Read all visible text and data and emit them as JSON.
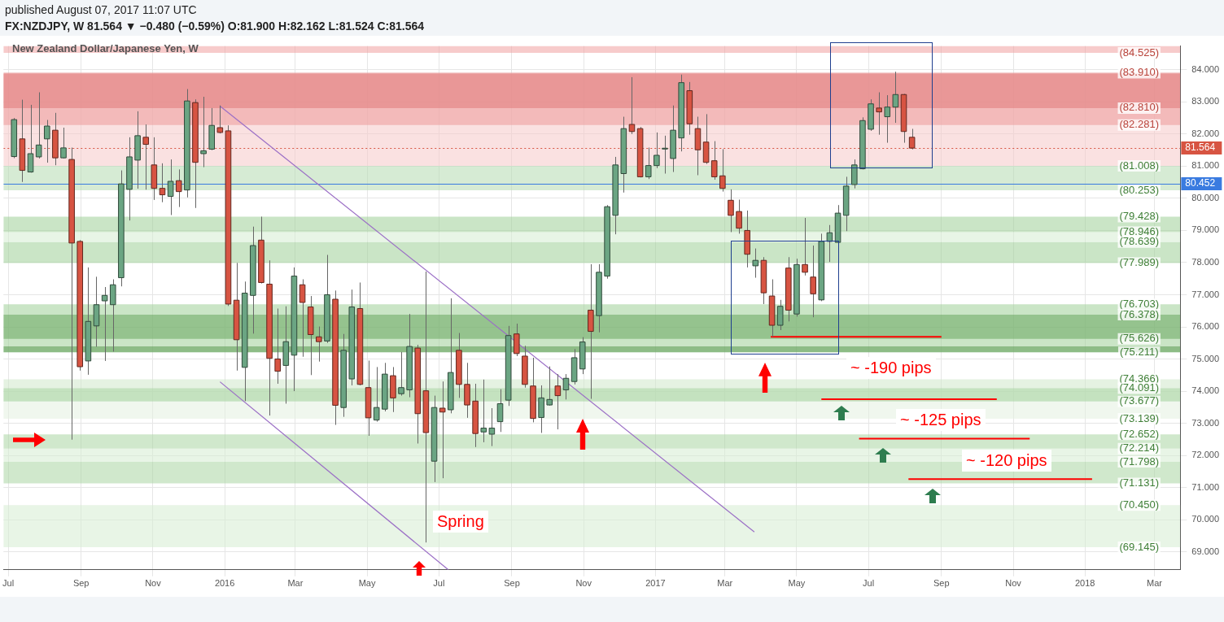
{
  "chart_data": {
    "type": "candlestick",
    "title": "New Zealand Dollar/Japanese Yen, W",
    "subtitle": "FX:NZDJPY, W  81.564 ▼ −0.480 (−0.59%) O:81.900 H:82.162 L:81.524 C:81.564",
    "annotations": [
      "published August 07, 2017 11:07 UTC",
      "~ -190 pips",
      "~ -125 pips",
      "~ -120 pips",
      "Spring",
      {
        "text": "(84.525)",
        "x": "2018-02-16",
        "y": 84.525
      },
      {
        "text": "(83.910)",
        "x": "2018-02-16",
        "y": 83.91
      },
      {
        "text": "(82.810)",
        "x": "2018-02-16",
        "y": 82.81
      },
      {
        "text": "(82.281)",
        "x": "2018-02-16",
        "y": 82.281
      },
      {
        "text": "(81.008)",
        "x": "2018-02-16",
        "y": 81.008
      },
      {
        "text": "(80.253)",
        "x": "2018-02-16",
        "y": 80.253
      },
      {
        "text": "(79.428)",
        "x": "2018-02-16",
        "y": 79.428
      },
      {
        "text": "(78.946)",
        "x": "2018-02-16",
        "y": 78.946
      },
      {
        "text": "(78.639)",
        "x": "2018-02-16",
        "y": 78.639
      },
      {
        "text": "(77.989)",
        "x": "2018-02-16",
        "y": 77.989
      },
      {
        "text": "(76.703)",
        "x": "2018-02-16",
        "y": 76.703
      },
      {
        "text": "(76.378)",
        "x": "2018-02-16",
        "y": 76.378
      },
      {
        "text": "(75.626)",
        "x": "2018-02-16",
        "y": 75.626
      },
      {
        "text": "(75.211)",
        "x": "2018-02-16",
        "y": 75.211
      },
      {
        "text": "(74.366)",
        "x": "2018-02-16",
        "y": 74.366
      },
      {
        "text": "(74.091)",
        "x": "2018-02-16",
        "y": 74.091
      },
      {
        "text": "(73.677)",
        "x": "2018-02-16",
        "y": 73.677
      },
      {
        "text": "(73.139)",
        "x": "2018-02-16",
        "y": 73.139
      },
      {
        "text": "(72.652)",
        "x": "2018-02-16",
        "y": 72.652
      },
      {
        "text": "(72.214)",
        "x": "2018-02-16",
        "y": 72.214
      },
      {
        "text": "(71.798)",
        "x": "2018-02-16",
        "y": 71.798
      },
      {
        "text": "(71.131)",
        "x": "2018-02-16",
        "y": 71.131
      },
      {
        "text": "(70.450)",
        "x": "2018-02-16",
        "y": 70.45
      },
      {
        "text": "(69.145)",
        "x": "2018-02-16",
        "y": 69.145
      }
    ],
    "x": [
      "2015-07-06",
      "2015-07-13",
      "2015-07-20",
      "2015-07-27",
      "2015-08-03",
      "2015-08-10",
      "2015-08-17",
      "2015-08-24",
      "2015-08-31",
      "2015-09-07",
      "2015-09-14",
      "2015-09-21",
      "2015-09-28",
      "2015-10-05",
      "2015-10-12",
      "2015-10-19",
      "2015-10-26",
      "2015-11-02",
      "2015-11-09",
      "2015-11-16",
      "2015-11-23",
      "2015-11-30",
      "2015-12-07",
      "2015-12-14",
      "2015-12-21",
      "2015-12-28",
      "2016-01-04",
      "2016-01-11",
      "2016-01-18",
      "2016-01-25",
      "2016-02-01",
      "2016-02-08",
      "2016-02-15",
      "2016-02-22",
      "2016-02-29",
      "2016-03-07",
      "2016-03-14",
      "2016-03-21",
      "2016-03-28",
      "2016-04-04",
      "2016-04-11",
      "2016-04-18",
      "2016-04-25",
      "2016-05-02",
      "2016-05-09",
      "2016-05-16",
      "2016-05-23",
      "2016-05-30",
      "2016-06-06",
      "2016-06-13",
      "2016-06-20",
      "2016-06-27",
      "2016-07-04",
      "2016-07-11",
      "2016-07-18",
      "2016-07-25",
      "2016-08-01",
      "2016-08-08",
      "2016-08-15",
      "2016-08-22",
      "2016-08-29",
      "2016-09-05",
      "2016-09-12",
      "2016-09-19",
      "2016-09-26",
      "2016-10-03",
      "2016-10-10",
      "2016-10-17",
      "2016-10-24",
      "2016-10-31",
      "2016-11-07",
      "2016-11-14",
      "2016-11-21",
      "2016-11-28",
      "2016-12-05",
      "2016-12-12",
      "2016-12-19",
      "2016-12-26",
      "2017-01-02",
      "2017-01-09",
      "2017-01-16",
      "2017-01-23",
      "2017-01-30",
      "2017-02-06",
      "2017-02-13",
      "2017-02-20",
      "2017-02-27",
      "2017-03-06",
      "2017-03-13",
      "2017-03-20",
      "2017-03-27",
      "2017-04-03",
      "2017-04-10",
      "2017-04-17",
      "2017-04-24",
      "2017-05-01",
      "2017-05-08",
      "2017-05-15",
      "2017-05-22",
      "2017-05-29",
      "2017-06-05",
      "2017-06-12",
      "2017-06-19",
      "2017-06-26",
      "2017-07-03",
      "2017-07-10",
      "2017-07-17",
      "2017-07-24",
      "2017-07-31",
      "2017-08-07"
    ],
    "ohlc": [
      [
        81.3,
        82.5,
        81.25,
        82.45
      ],
      [
        81.85,
        83.07,
        80.51,
        80.87
      ],
      [
        80.82,
        82.91,
        80.8,
        81.39
      ],
      [
        81.29,
        83.3,
        81.24,
        81.66
      ],
      [
        81.85,
        82.44,
        81.11,
        82.25
      ],
      [
        82.12,
        82.66,
        81.03,
        81.26
      ],
      [
        81.26,
        82.2,
        81.24,
        81.57
      ],
      [
        81.21,
        81.58,
        72.49,
        78.61
      ],
      [
        78.66,
        78.7,
        74.64,
        74.76
      ],
      [
        74.94,
        77.85,
        74.51,
        76.17
      ],
      [
        76.03,
        77.56,
        75.38,
        76.69
      ],
      [
        76.81,
        77.24,
        74.94,
        76.98
      ],
      [
        76.69,
        77.48,
        75.23,
        77.31
      ],
      [
        77.53,
        80.87,
        77.26,
        80.45
      ],
      [
        80.28,
        81.9,
        79.31,
        81.29
      ],
      [
        81.19,
        82.71,
        80.3,
        81.95
      ],
      [
        81.9,
        82.3,
        80.27,
        81.68
      ],
      [
        81.04,
        81.9,
        79.95,
        80.31
      ],
      [
        80.31,
        81.09,
        79.88,
        80.11
      ],
      [
        80.06,
        81.21,
        79.48,
        80.53
      ],
      [
        80.55,
        80.9,
        79.73,
        80.21
      ],
      [
        80.26,
        83.4,
        80.03,
        83.03
      ],
      [
        82.98,
        83.08,
        79.7,
        81.12
      ],
      [
        81.39,
        83.16,
        80.97,
        81.48
      ],
      [
        81.53,
        82.81,
        81.5,
        82.27
      ],
      [
        82.2,
        82.89,
        82.02,
        82.05
      ],
      [
        82.1,
        82.27,
        76.65,
        76.71
      ],
      [
        76.83,
        77.99,
        74.64,
        75.6
      ],
      [
        74.74,
        77.41,
        73.69,
        77.05
      ],
      [
        76.98,
        79.12,
        75.79,
        78.53
      ],
      [
        78.7,
        79.43,
        77.35,
        77.38
      ],
      [
        77.33,
        78.07,
        73.24,
        75.02
      ],
      [
        75.0,
        76.57,
        74.23,
        74.62
      ],
      [
        74.8,
        76.64,
        73.61,
        75.54
      ],
      [
        75.12,
        77.85,
        74.0,
        77.58
      ],
      [
        77.31,
        77.48,
        75.07,
        76.76
      ],
      [
        76.62,
        76.96,
        74.5,
        75.76
      ],
      [
        75.69,
        76.01,
        74.92,
        75.54
      ],
      [
        75.56,
        78.24,
        75.5,
        77.0
      ],
      [
        76.86,
        77.13,
        72.95,
        73.56
      ],
      [
        73.49,
        75.78,
        73.2,
        75.27
      ],
      [
        74.38,
        77.16,
        74.18,
        76.62
      ],
      [
        76.57,
        77.38,
        74.18,
        74.21
      ],
      [
        74.11,
        74.95,
        72.61,
        73.17
      ],
      [
        73.1,
        74.75,
        73.05,
        73.49
      ],
      [
        73.44,
        74.88,
        73.37,
        74.53
      ],
      [
        74.48,
        74.75,
        73.35,
        73.79
      ],
      [
        73.92,
        75.22,
        73.86,
        74.11
      ],
      [
        74.04,
        76.4,
        73.81,
        75.39
      ],
      [
        75.34,
        75.44,
        72.37,
        73.3
      ],
      [
        74.01,
        77.72,
        69.29,
        72.71
      ],
      [
        71.82,
        73.86,
        71.17,
        73.49
      ],
      [
        73.47,
        74.3,
        71.29,
        73.35
      ],
      [
        73.42,
        76.89,
        73.31,
        74.58
      ],
      [
        75.27,
        75.81,
        73.79,
        74.21
      ],
      [
        74.21,
        74.88,
        73.17,
        73.57
      ],
      [
        73.69,
        74.23,
        72.26,
        72.68
      ],
      [
        72.73,
        74.36,
        72.41,
        72.85
      ],
      [
        72.66,
        73.47,
        72.29,
        72.85
      ],
      [
        73.05,
        74.06,
        72.73,
        73.61
      ],
      [
        73.72,
        76.03,
        73.54,
        75.73
      ],
      [
        75.78,
        76.1,
        75.09,
        75.17
      ],
      [
        75.09,
        75.41,
        74.11,
        74.21
      ],
      [
        74.16,
        75.04,
        73.03,
        73.15
      ],
      [
        73.18,
        74.18,
        72.7,
        73.79
      ],
      [
        73.57,
        74.77,
        73.55,
        73.74
      ],
      [
        74.16,
        74.53,
        72.81,
        73.86
      ],
      [
        74.04,
        74.53,
        73.74,
        74.4
      ],
      [
        74.3,
        75.31,
        74.21,
        75.04
      ],
      [
        74.69,
        75.68,
        74.53,
        75.53
      ],
      [
        76.52,
        77.95,
        73.76,
        75.86
      ],
      [
        76.35,
        77.95,
        75.83,
        77.7
      ],
      [
        77.58,
        79.79,
        77.5,
        79.74
      ],
      [
        79.47,
        81.29,
        78.88,
        81.04
      ],
      [
        80.77,
        82.54,
        80.18,
        82.17
      ],
      [
        82.3,
        83.77,
        82.0,
        82.08
      ],
      [
        82.17,
        82.22,
        80.65,
        80.67
      ],
      [
        80.67,
        81.58,
        80.6,
        81.02
      ],
      [
        81.02,
        82.05,
        80.94,
        81.34
      ],
      [
        81.54,
        81.95,
        80.77,
        81.56
      ],
      [
        81.24,
        82.89,
        80.82,
        82.12
      ],
      [
        81.88,
        83.85,
        81.46,
        83.6
      ],
      [
        83.35,
        83.62,
        81.98,
        82.32
      ],
      [
        82.17,
        82.54,
        80.72,
        81.51
      ],
      [
        81.75,
        82.62,
        81.07,
        81.12
      ],
      [
        81.17,
        81.78,
        80.58,
        80.67
      ],
      [
        80.7,
        81.53,
        80.21,
        80.31
      ],
      [
        79.94,
        80.28,
        78.95,
        79.47
      ],
      [
        79.59,
        79.96,
        78.9,
        79.07
      ],
      [
        79.0,
        79.62,
        77.85,
        78.26
      ],
      [
        77.9,
        78.44,
        77.53,
        78.07
      ],
      [
        78.07,
        78.17,
        76.71,
        77.06
      ],
      [
        76.96,
        77.48,
        75.69,
        76.05
      ],
      [
        76.05,
        76.84,
        75.9,
        76.64
      ],
      [
        77.83,
        78.17,
        76.17,
        76.52
      ],
      [
        76.4,
        78.12,
        76.32,
        77.94
      ],
      [
        77.94,
        79.39,
        77.6,
        77.7
      ],
      [
        77.55,
        78.53,
        76.3,
        77.03
      ],
      [
        76.84,
        78.9,
        76.8,
        78.66
      ],
      [
        78.66,
        79.17,
        78.02,
        78.93
      ],
      [
        78.63,
        79.79,
        78.6,
        79.54
      ],
      [
        79.47,
        80.67,
        78.98,
        80.38
      ],
      [
        80.43,
        81.21,
        80.31,
        81.04
      ],
      [
        80.92,
        82.52,
        80.9,
        82.42
      ],
      [
        82.15,
        83.08,
        82.1,
        82.94
      ],
      [
        82.81,
        83.3,
        81.98,
        82.69
      ],
      [
        82.54,
        83.21,
        81.73,
        82.84
      ],
      [
        82.84,
        83.94,
        82.35,
        83.23
      ],
      [
        83.23,
        83.25,
        81.73,
        82.08
      ],
      [
        81.9,
        82.162,
        81.524,
        81.564
      ]
    ],
    "colors": [
      "#6ba583",
      "#d75442",
      "#6ba583",
      "#6ba583",
      "#6ba583",
      "#d75442",
      "#6ba583",
      "#d75442",
      "#d75442",
      "#6ba583",
      "#6ba583",
      "#6ba583",
      "#6ba583",
      "#6ba583",
      "#6ba583",
      "#6ba583",
      "#d75442",
      "#d75442",
      "#d75442",
      "#6ba583",
      "#d75442",
      "#6ba583",
      "#d75442",
      "#6ba583",
      "#6ba583",
      "#d75442",
      "#d75442",
      "#d75442",
      "#6ba583",
      "#6ba583",
      "#d75442",
      "#d75442",
      "#d75442",
      "#6ba583",
      "#6ba583",
      "#d75442",
      "#d75442",
      "#d75442",
      "#6ba583",
      "#d75442",
      "#6ba583",
      "#6ba583",
      "#d75442",
      "#d75442",
      "#6ba583",
      "#6ba583",
      "#d75442",
      "#6ba583",
      "#6ba583",
      "#d75442",
      "#d75442",
      "#6ba583",
      "#d75442",
      "#6ba583",
      "#d75442",
      "#d75442",
      "#d75442",
      "#6ba583",
      "#6ba583",
      "#6ba583",
      "#6ba583",
      "#d75442",
      "#d75442",
      "#d75442",
      "#6ba583",
      "#6ba583",
      "#d75442",
      "#6ba583",
      "#6ba583",
      "#6ba583",
      "#d75442",
      "#6ba583",
      "#6ba583",
      "#6ba583",
      "#6ba583",
      "#d75442",
      "#d75442",
      "#6ba583",
      "#6ba583",
      "#6ba583",
      "#6ba583",
      "#6ba583",
      "#d75442",
      "#d75442",
      "#d75442",
      "#d75442",
      "#d75442",
      "#d75442",
      "#d75442",
      "#d75442",
      "#6ba583",
      "#d75442",
      "#d75442",
      "#6ba583",
      "#d75442",
      "#6ba583",
      "#d75442",
      "#d75442",
      "#6ba583",
      "#6ba583",
      "#6ba583",
      "#6ba583",
      "#6ba583",
      "#6ba583",
      "#6ba583",
      "#d75442",
      "#6ba583",
      "#6ba583",
      "#d75442",
      "#d75442"
    ],
    "series": [
      {
        "type": "line",
        "color": "#9b6fc6",
        "x": [
          "2015-12-28",
          "2017-03-26"
        ],
        "values": [
          82.87,
          69.62
        ]
      },
      {
        "type": "line",
        "color": "#9b6fc6",
        "x": [
          "2015-12-28",
          "2016-07-09"
        ],
        "values": [
          74.29,
          68.44
        ]
      },
      {
        "type": "line",
        "color": "#ff0000",
        "x": [
          "2017-04-09",
          "2017-09-01"
        ],
        "values": [
          75.69,
          75.69
        ]
      },
      {
        "type": "line",
        "color": "#ff0000",
        "x": [
          "2017-05-22",
          "2017-10-18"
        ],
        "values": [
          73.75,
          73.75
        ]
      },
      {
        "type": "line",
        "color": "#ff0000",
        "x": [
          "2017-06-23",
          "2017-11-15"
        ],
        "values": [
          72.52,
          72.52
        ]
      },
      {
        "type": "line",
        "color": "#ff0000",
        "x": [
          "2017-08-04",
          "2018-01-07"
        ],
        "values": [
          71.26,
          71.26
        ]
      }
    ],
    "bands": [
      {
        "axis": "y",
        "from": 84.525,
        "to": 84.74,
        "color": "#f0a0a0"
      },
      {
        "axis": "y",
        "from": 81.008,
        "to": 83.91,
        "color": "#f6c8c8"
      },
      {
        "axis": "y",
        "from": 82.281,
        "to": 83.869,
        "color": "#ec9a9a"
      },
      {
        "axis": "y",
        "from": 82.81,
        "to": 83.91,
        "color": "#e07a7a"
      },
      {
        "axis": "y",
        "from": 80.253,
        "to": 81.008,
        "color": "#b5dbb0"
      },
      {
        "axis": "y",
        "from": 78.946,
        "to": 79.428,
        "color": "#9fcf98"
      },
      {
        "axis": "y",
        "from": 77.989,
        "to": 78.639,
        "color": "#9fcf98"
      },
      {
        "axis": "y",
        "from": 78.639,
        "to": 78.946,
        "color": "#d6ecd2"
      },
      {
        "axis": "y",
        "from": 75.211,
        "to": 76.703,
        "color": "#9fcf98"
      },
      {
        "axis": "y",
        "from": 75.626,
        "to": 76.378,
        "color": "#6aa861"
      },
      {
        "axis": "y",
        "from": 75.211,
        "to": 75.392,
        "color": "#5b9a52"
      },
      {
        "axis": "y",
        "from": 73.677,
        "to": 74.366,
        "color": "#cfe7cb"
      },
      {
        "axis": "y",
        "from": 73.677,
        "to": 74.091,
        "color": "#a9d5a2"
      },
      {
        "axis": "y",
        "from": 73.139,
        "to": 73.677,
        "color": "#e3f1e0"
      },
      {
        "axis": "y",
        "from": 72.214,
        "to": 72.652,
        "color": "#a9d5a2"
      },
      {
        "axis": "y",
        "from": 71.131,
        "to": 71.798,
        "color": "#a9d5a2"
      },
      {
        "axis": "y",
        "from": 71.798,
        "to": 72.214,
        "color": "#d6ecd2"
      },
      {
        "axis": "y",
        "from": 69.145,
        "to": 70.45,
        "color": "#d6ecd2"
      }
    ],
    "ref_lines": [
      {
        "axis": "y",
        "value": 81.564,
        "label": "81.564",
        "color": "#d75442",
        "line_style": "dotted"
      },
      {
        "axis": "y",
        "value": 80.452,
        "label": "80.452",
        "color": "#3a7be0",
        "line_style": "solid"
      }
    ],
    "xlim": [
      "2015-06-27",
      "2018-03-23"
    ],
    "xticks": [
      {
        "value": "2015-07-01",
        "label": "Jul"
      },
      {
        "value": "2015-09-01",
        "label": "Sep"
      },
      {
        "value": "2015-11-01",
        "label": "Nov"
      },
      {
        "value": "2016-01-01",
        "label": "2016"
      },
      {
        "value": "2016-03-01",
        "label": "Mar"
      },
      {
        "value": "2016-05-01",
        "label": "May"
      },
      {
        "value": "2016-07-01",
        "label": "Jul"
      },
      {
        "value": "2016-09-01",
        "label": "Sep"
      },
      {
        "value": "2016-11-01",
        "label": "Nov"
      },
      {
        "value": "2017-01-01",
        "label": "2017"
      },
      {
        "value": "2017-03-01",
        "label": "Mar"
      },
      {
        "value": "2017-05-01",
        "label": "May"
      },
      {
        "value": "2017-07-01",
        "label": "Jul"
      },
      {
        "value": "2017-09-01",
        "label": "Sep"
      },
      {
        "value": "2017-11-01",
        "label": "Nov"
      },
      {
        "value": "2018-01-01",
        "label": "2018"
      },
      {
        "value": "2018-03-01",
        "label": "Mar"
      }
    ],
    "ylim": [
      68.44,
      84.74
    ],
    "yticks": [
      {
        "value": 69,
        "label": "69.000"
      },
      {
        "value": 70,
        "label": "70.000"
      },
      {
        "value": 71,
        "label": "71.000"
      },
      {
        "value": 72,
        "label": "72.000"
      },
      {
        "value": 73,
        "label": "73.000"
      },
      {
        "value": 74,
        "label": "74.000"
      },
      {
        "value": 75,
        "label": "75.000"
      },
      {
        "value": 76,
        "label": "76.000"
      },
      {
        "value": 77,
        "label": "77.000"
      },
      {
        "value": 78,
        "label": "78.000"
      },
      {
        "value": 79,
        "label": "79.000"
      },
      {
        "value": 80,
        "label": "80.000"
      },
      {
        "value": 81,
        "label": "81.000"
      },
      {
        "value": 82,
        "label": "82.000"
      },
      {
        "value": 83,
        "label": "83.000"
      },
      {
        "value": 84,
        "label": "84.000"
      }
    ],
    "grid": true
  }
}
